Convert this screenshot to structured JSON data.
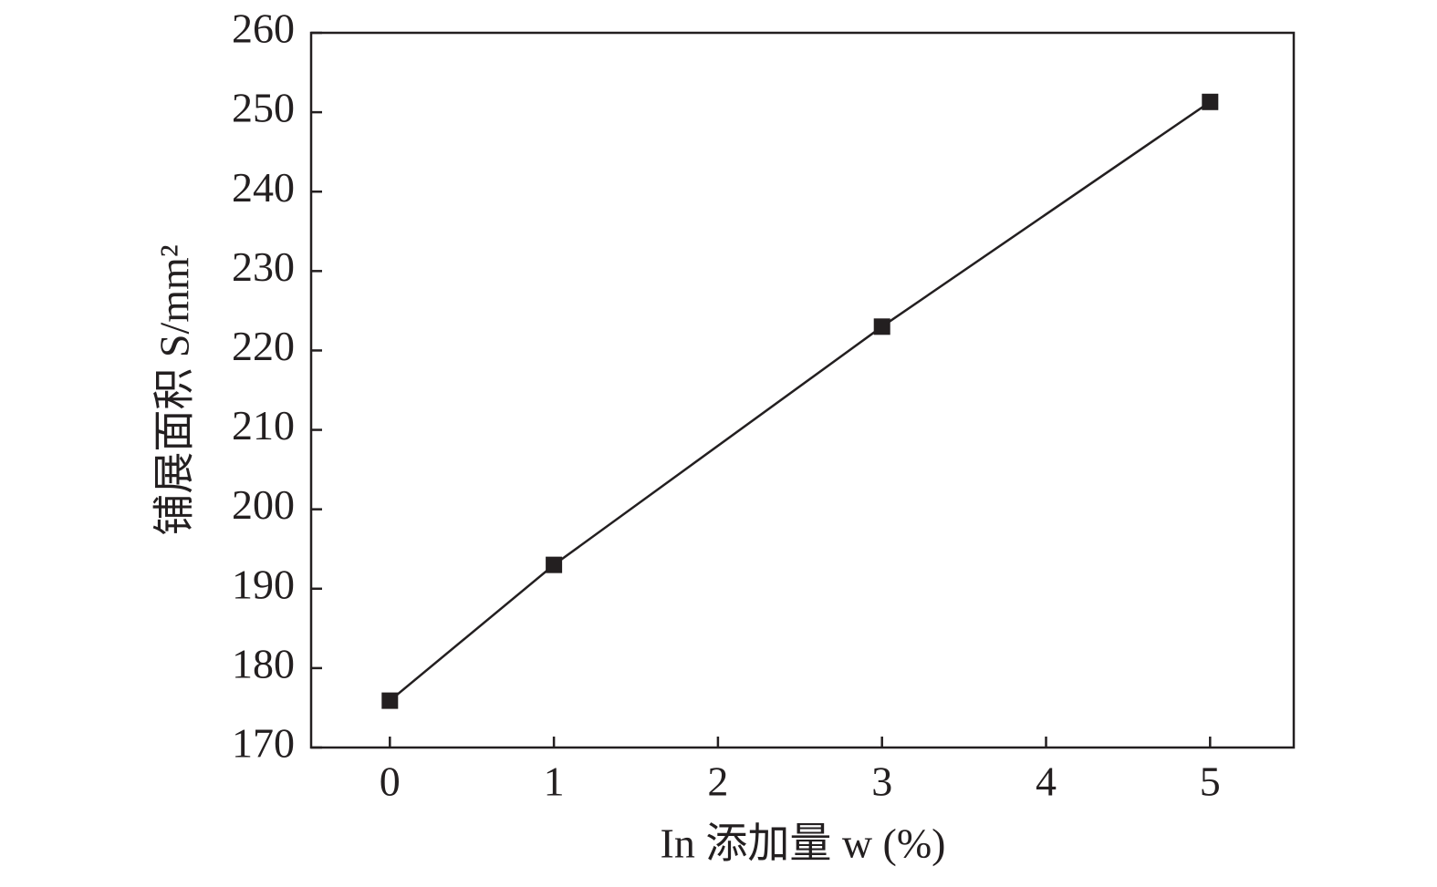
{
  "chart_data": {
    "type": "line",
    "x_label": "In 添加量 w (%)",
    "y_label": "铺展面积 S/mm²",
    "x": [
      0,
      1,
      3,
      5
    ],
    "series": [
      {
        "name": "S",
        "color": "#231f20",
        "values": [
          175.9,
          193,
          223,
          251.3
        ]
      }
    ],
    "xlim": [
      -0.48,
      5.51
    ],
    "xticks": [
      0,
      1,
      2,
      3,
      4,
      5
    ],
    "ylim": [
      170,
      260
    ],
    "yticks": [
      170,
      180,
      190,
      200,
      210,
      220,
      230,
      240,
      250,
      260
    ],
    "grid": false
  }
}
